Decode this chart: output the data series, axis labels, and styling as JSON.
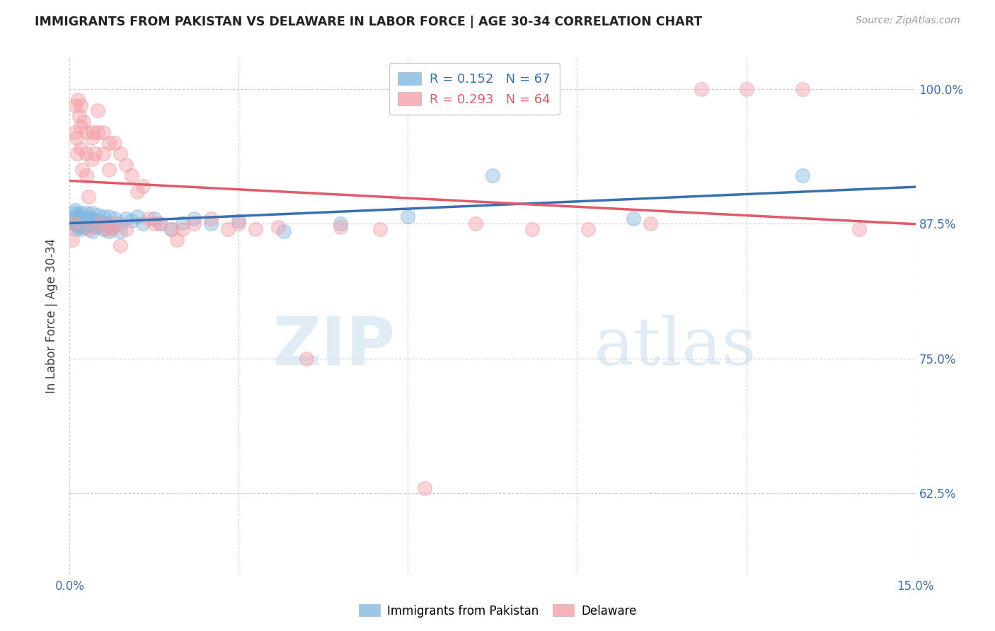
{
  "title": "IMMIGRANTS FROM PAKISTAN VS DELAWARE IN LABOR FORCE | AGE 30-34 CORRELATION CHART",
  "source": "Source: ZipAtlas.com",
  "ylabel": "In Labor Force | Age 30-34",
  "xlim": [
    0.0,
    0.15
  ],
  "ylim": [
    0.55,
    1.03
  ],
  "xticks": [
    0.0,
    0.03,
    0.06,
    0.09,
    0.12,
    0.15
  ],
  "xticklabels": [
    "0.0%",
    "",
    "",
    "",
    "",
    "15.0%"
  ],
  "yticks": [
    0.625,
    0.75,
    0.875,
    1.0
  ],
  "yticklabels": [
    "62.5%",
    "75.0%",
    "87.5%",
    "100.0%"
  ],
  "legend_label1": "Immigrants from Pakistan",
  "legend_label2": "Delaware",
  "blue_color": "#85b8e0",
  "pink_color": "#f4a0a8",
  "blue_line_color": "#3a6faf",
  "pink_line_color": "#e05a6a",
  "watermark_zip": "ZIP",
  "watermark_atlas": "atlas",
  "pakistan_x": [
    0.0005,
    0.0007,
    0.0008,
    0.001,
    0.001,
    0.001,
    0.001,
    0.0012,
    0.0013,
    0.0014,
    0.0015,
    0.0015,
    0.0016,
    0.0017,
    0.0018,
    0.002,
    0.002,
    0.002,
    0.002,
    0.0022,
    0.0023,
    0.0025,
    0.0025,
    0.003,
    0.003,
    0.003,
    0.003,
    0.003,
    0.0033,
    0.0035,
    0.004,
    0.004,
    0.004,
    0.004,
    0.0042,
    0.0045,
    0.005,
    0.005,
    0.005,
    0.0055,
    0.006,
    0.006,
    0.006,
    0.007,
    0.007,
    0.007,
    0.0075,
    0.008,
    0.009,
    0.009,
    0.01,
    0.011,
    0.012,
    0.013,
    0.015,
    0.016,
    0.018,
    0.02,
    0.022,
    0.025,
    0.03,
    0.038,
    0.048,
    0.06,
    0.075,
    0.1,
    0.13
  ],
  "pakistan_y": [
    0.88,
    0.875,
    0.885,
    0.87,
    0.875,
    0.882,
    0.888,
    0.878,
    0.876,
    0.874,
    0.872,
    0.879,
    0.884,
    0.877,
    0.881,
    0.87,
    0.875,
    0.88,
    0.885,
    0.873,
    0.876,
    0.872,
    0.88,
    0.875,
    0.88,
    0.885,
    0.878,
    0.872,
    0.877,
    0.882,
    0.875,
    0.88,
    0.868,
    0.885,
    0.873,
    0.878,
    0.872,
    0.878,
    0.883,
    0.876,
    0.87,
    0.876,
    0.882,
    0.868,
    0.875,
    0.882,
    0.872,
    0.88,
    0.875,
    0.868,
    0.88,
    0.878,
    0.882,
    0.875,
    0.88,
    0.875,
    0.87,
    0.876,
    0.88,
    0.875,
    0.878,
    0.868,
    0.875,
    0.882,
    0.92,
    0.88,
    0.92
  ],
  "delaware_x": [
    0.0005,
    0.0008,
    0.001,
    0.001,
    0.0012,
    0.0013,
    0.0015,
    0.0017,
    0.002,
    0.002,
    0.002,
    0.0022,
    0.0025,
    0.003,
    0.003,
    0.003,
    0.0033,
    0.0035,
    0.004,
    0.004,
    0.0042,
    0.0045,
    0.005,
    0.005,
    0.0053,
    0.006,
    0.006,
    0.0065,
    0.007,
    0.007,
    0.0075,
    0.008,
    0.008,
    0.009,
    0.009,
    0.01,
    0.01,
    0.011,
    0.012,
    0.013,
    0.014,
    0.015,
    0.016,
    0.018,
    0.019,
    0.02,
    0.022,
    0.025,
    0.028,
    0.03,
    0.033,
    0.037,
    0.042,
    0.048,
    0.055,
    0.063,
    0.072,
    0.082,
    0.092,
    0.103,
    0.112,
    0.12,
    0.13,
    0.14
  ],
  "delaware_y": [
    0.86,
    0.875,
    0.985,
    0.96,
    0.955,
    0.94,
    0.99,
    0.975,
    0.985,
    0.965,
    0.945,
    0.925,
    0.97,
    0.96,
    0.94,
    0.92,
    0.9,
    0.87,
    0.955,
    0.935,
    0.96,
    0.94,
    0.98,
    0.96,
    0.875,
    0.96,
    0.94,
    0.87,
    0.95,
    0.925,
    0.87,
    0.95,
    0.875,
    0.94,
    0.855,
    0.93,
    0.87,
    0.92,
    0.905,
    0.91,
    0.88,
    0.875,
    0.875,
    0.87,
    0.86,
    0.87,
    0.875,
    0.88,
    0.87,
    0.875,
    0.87,
    0.872,
    0.75,
    0.872,
    0.87,
    0.63,
    0.875,
    0.87,
    0.87,
    0.875,
    1.0,
    1.0,
    1.0,
    0.87
  ]
}
